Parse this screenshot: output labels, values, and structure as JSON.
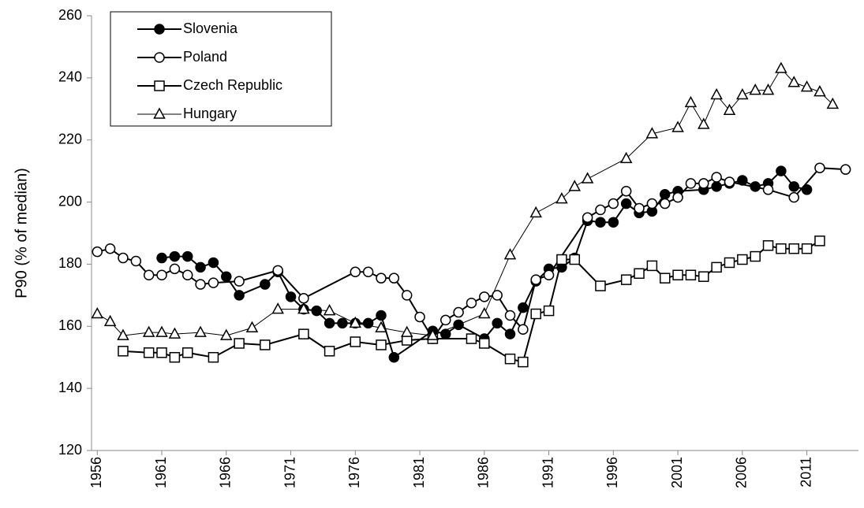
{
  "chart_data": {
    "type": "line",
    "ylabel": "P90  (% of median)",
    "xlim": [
      1955.8,
      2015
    ],
    "ylim": [
      120,
      260
    ],
    "yticks": [
      120,
      140,
      160,
      180,
      200,
      220,
      240,
      260
    ],
    "xticks": [
      1956,
      1961,
      1966,
      1971,
      1976,
      1981,
      1986,
      1991,
      1996,
      2001,
      2006,
      2011
    ],
    "legend": "upper left",
    "series": [
      {
        "name": "Slovenia",
        "color": "#000000",
        "marker": "filled-circle",
        "x": [
          1961,
          1962,
          1963,
          1964,
          1965,
          1966,
          1967,
          1969,
          1970,
          1971,
          1972,
          1973,
          1974,
          1975,
          1976,
          1977,
          1978,
          1979,
          1982,
          1983,
          1984,
          1986,
          1987,
          1988,
          1989,
          1990,
          1991,
          1992,
          1993,
          1994,
          1995,
          1996,
          1997,
          1998,
          1999,
          2000,
          2001,
          2003,
          2004,
          2005,
          2006,
          2007,
          2008,
          2009,
          2010,
          2011
        ],
        "values": [
          182,
          182.5,
          182.5,
          179,
          180.5,
          176,
          170,
          173.5,
          177.5,
          169.5,
          165.5,
          165,
          161,
          161,
          161,
          161,
          163.5,
          150,
          158.5,
          157.5,
          160.5,
          156,
          161,
          157.5,
          166,
          174.5,
          178.5,
          179,
          182,
          194,
          193.5,
          193.5,
          199.5,
          196.5,
          197,
          202.5,
          203.5,
          204,
          205,
          206,
          207,
          205,
          206,
          210,
          205,
          204
        ]
      },
      {
        "name": "Poland",
        "color": "#000000",
        "marker": "open-circle",
        "x": [
          1956,
          1957,
          1958,
          1959,
          1960,
          1961,
          1962,
          1963,
          1964,
          1965,
          1967,
          1970,
          1972,
          1976,
          1977,
          1978,
          1979,
          1980,
          1981,
          1982,
          1983,
          1984,
          1985,
          1986,
          1987,
          1988,
          1989,
          1990,
          1991,
          1994,
          1995,
          1996,
          1997,
          1998,
          1999,
          2000,
          2001,
          2002,
          2003,
          2004,
          2005,
          2008,
          2010,
          2012,
          2014
        ],
        "values": [
          184,
          185,
          182,
          181,
          176.5,
          176.5,
          178.5,
          176.5,
          173.5,
          174,
          174.5,
          178,
          169,
          177.5,
          177.5,
          175.5,
          175.5,
          170,
          163,
          156,
          162,
          164.5,
          167.5,
          169.5,
          170,
          163.5,
          159,
          175,
          176.5,
          195,
          197.5,
          199.5,
          203.5,
          198,
          199.5,
          199.5,
          201.5,
          206,
          206,
          208,
          206.5,
          204,
          201.5,
          211,
          210.5
        ]
      },
      {
        "name": "Czech Republic",
        "color": "#000000",
        "marker": "open-square",
        "x": [
          1958,
          1960,
          1961,
          1962,
          1963,
          1965,
          1967,
          1969,
          1972,
          1974,
          1976,
          1978,
          1980,
          1982,
          1985,
          1986,
          1988,
          1989,
          1990,
          1991,
          1992,
          1993,
          1995,
          1997,
          1998,
          1999,
          2000,
          2001,
          2002,
          2003,
          2004,
          2005,
          2006,
          2007,
          2008,
          2009,
          2010,
          2011,
          2012
        ],
        "values": [
          152,
          151.5,
          151.5,
          150,
          151.5,
          150,
          154.5,
          154,
          157.5,
          152,
          155,
          154,
          155.5,
          156,
          156,
          154.5,
          149.5,
          148.5,
          164,
          165,
          181.5,
          181.5,
          173,
          175,
          177,
          179.5,
          175.5,
          176.5,
          176.5,
          176,
          179,
          180.5,
          181.5,
          182.5,
          186,
          185,
          185,
          185,
          187.5
        ]
      },
      {
        "name": "Hungary",
        "color": "#000000",
        "marker": "open-triangle",
        "x": [
          1956,
          1957,
          1958,
          1960,
          1961,
          1962,
          1964,
          1966,
          1968,
          1970,
          1972,
          1974,
          1976,
          1978,
          1980,
          1982,
          1986,
          1988,
          1990,
          1992,
          1993,
          1994,
          1997,
          1999,
          2001,
          2002,
          2003,
          2004,
          2005,
          2006,
          2007,
          2008,
          2009,
          2010,
          2011,
          2012,
          2013
        ],
        "values": [
          164,
          161.5,
          157,
          158,
          158,
          157.5,
          158,
          157,
          159.5,
          165.5,
          165.5,
          165,
          161,
          159.5,
          158,
          157,
          164,
          183,
          196.5,
          201,
          205,
          207.5,
          214,
          222,
          224,
          232,
          225,
          234.5,
          229.5,
          234.5,
          236,
          236,
          243,
          238.5,
          237,
          235.5,
          231.5
        ]
      }
    ]
  }
}
